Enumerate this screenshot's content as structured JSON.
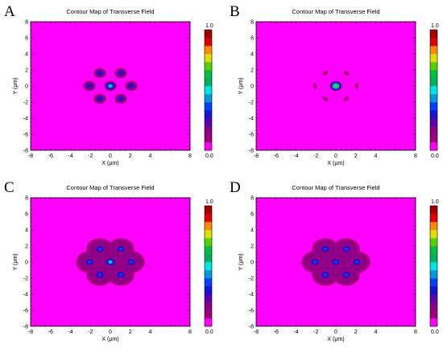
{
  "colorbar": {
    "min_label": "0.0",
    "max_label": "1.0",
    "levels": [
      "#ff00ff",
      "#a0007a",
      "#8b008b",
      "#5a00b0",
      "#1414d2",
      "#0040ff",
      "#009ad8",
      "#00e5e5",
      "#00b060",
      "#00c040",
      "#58d000",
      "#e0e000",
      "#ff8c00",
      "#e00000",
      "#a00000"
    ]
  },
  "chart_data": [
    {
      "type": "heatmap",
      "panel": "A",
      "title": "Contour Map of Transverse Field",
      "xlabel": "X (μm)",
      "ylabel": "Y (μm)",
      "xlim": [
        -8,
        8
      ],
      "ylim": [
        -8,
        8
      ],
      "xticks": [
        "-8",
        "-6",
        "-4",
        "-2",
        "0",
        "2",
        "4",
        "8"
      ],
      "yticks": [
        "8",
        "6",
        "4",
        "2",
        "0",
        "-2",
        "-4",
        "-6",
        "-8"
      ],
      "cores": [
        {
          "x": 0,
          "y": 0,
          "level": 7,
          "shape": "round"
        },
        {
          "x": -1.05,
          "y": 1.6,
          "level": 4,
          "shape": "round"
        },
        {
          "x": 1.05,
          "y": 1.6,
          "level": 4,
          "shape": "round"
        },
        {
          "x": -2.1,
          "y": 0,
          "level": 4,
          "shape": "round"
        },
        {
          "x": 2.1,
          "y": 0,
          "level": 4,
          "shape": "round"
        },
        {
          "x": -1.05,
          "y": -1.6,
          "level": 4,
          "shape": "round"
        },
        {
          "x": 1.05,
          "y": -1.6,
          "level": 4,
          "shape": "round"
        }
      ]
    },
    {
      "type": "heatmap",
      "panel": "B",
      "title": "Contour Map of Transverse Field",
      "xlabel": "X (μm)",
      "ylabel": "Y (μm)",
      "xlim": [
        -8,
        8
      ],
      "ylim": [
        -8,
        8
      ],
      "xticks": [
        "-8",
        "-6",
        "-4",
        "-2",
        "0",
        "2",
        "4",
        "8"
      ],
      "yticks": [
        "8",
        "6",
        "4",
        "2",
        "0",
        "-2",
        "-4",
        "-6",
        "-8"
      ],
      "cores": [
        {
          "x": 0,
          "y": 0,
          "level": 11,
          "shape": "round"
        },
        {
          "x": -1.05,
          "y": 1.6,
          "level": 1,
          "shape": "lobe"
        },
        {
          "x": 1.05,
          "y": 1.6,
          "level": 1,
          "shape": "lobe"
        },
        {
          "x": -2.1,
          "y": 0,
          "level": 1,
          "shape": "lobe"
        },
        {
          "x": 2.1,
          "y": 0,
          "level": 1,
          "shape": "lobe"
        },
        {
          "x": -1.05,
          "y": -1.6,
          "level": 1,
          "shape": "lobe"
        },
        {
          "x": 1.05,
          "y": -1.6,
          "level": 1,
          "shape": "lobe"
        }
      ]
    },
    {
      "type": "heatmap",
      "panel": "C",
      "title": "Contour Map of Transverse Field",
      "xlabel": "X (μm)",
      "ylabel": "Y (μm)",
      "xlim": [
        -8,
        8
      ],
      "ylim": [
        -8,
        8
      ],
      "xticks": [
        "-8",
        "-6",
        "-4",
        "-2",
        "0",
        "2",
        "4",
        "8"
      ],
      "yticks": [
        "8",
        "6",
        "4",
        "2",
        "0",
        "-2",
        "-4",
        "-6",
        "-8"
      ],
      "halo": true,
      "cores": [
        {
          "x": 0,
          "y": 0,
          "level": 7,
          "shape": "round"
        },
        {
          "x": -1.05,
          "y": 1.6,
          "level": 5,
          "shape": "round"
        },
        {
          "x": 1.05,
          "y": 1.6,
          "level": 5,
          "shape": "round"
        },
        {
          "x": -2.1,
          "y": 0,
          "level": 5,
          "shape": "round"
        },
        {
          "x": 2.1,
          "y": 0,
          "level": 5,
          "shape": "round"
        },
        {
          "x": -1.05,
          "y": -1.6,
          "level": 5,
          "shape": "round"
        },
        {
          "x": 1.05,
          "y": -1.6,
          "level": 5,
          "shape": "round"
        }
      ]
    },
    {
      "type": "heatmap",
      "panel": "D",
      "title": "Contour Map of Transverse Field",
      "xlabel": "X (μm)",
      "ylabel": "Y (μm)",
      "xlim": [
        -8,
        8
      ],
      "ylim": [
        -8,
        8
      ],
      "xticks": [
        "-8",
        "-6",
        "-4",
        "-2",
        "0",
        "2",
        "4",
        "8"
      ],
      "yticks": [
        "8",
        "6",
        "4",
        "2",
        "0",
        "-2",
        "-4",
        "-6",
        "-8"
      ],
      "halo": true,
      "cores": [
        {
          "x": 0,
          "y": 0,
          "level": 5,
          "shape": "round"
        },
        {
          "x": -1.05,
          "y": 1.6,
          "level": 5,
          "shape": "round"
        },
        {
          "x": 1.05,
          "y": 1.6,
          "level": 5,
          "shape": "round"
        },
        {
          "x": -2.1,
          "y": 0,
          "level": 5,
          "shape": "round"
        },
        {
          "x": 2.1,
          "y": 0,
          "level": 5,
          "shape": "round"
        },
        {
          "x": -1.05,
          "y": -1.6,
          "level": 5,
          "shape": "round"
        },
        {
          "x": 1.05,
          "y": -1.6,
          "level": 5,
          "shape": "round"
        }
      ]
    }
  ]
}
